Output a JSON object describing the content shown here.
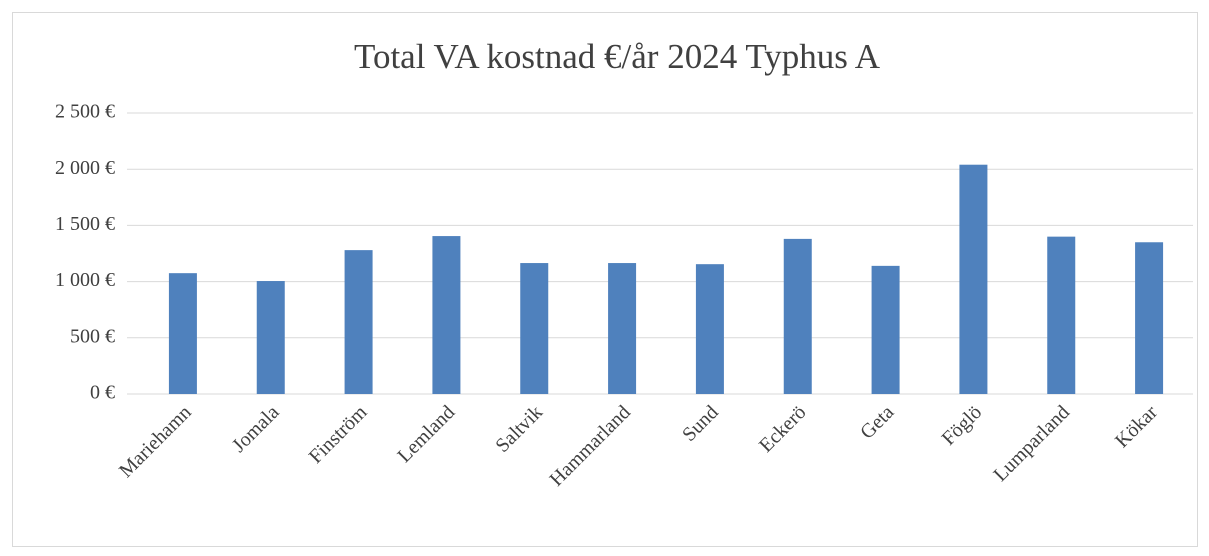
{
  "chart_data": {
    "type": "bar",
    "title": "Total VA kostnad €/år 2024 Typhus A",
    "categories": [
      "Mariehamn",
      "Jomala",
      "Finström",
      "Lemland",
      "Saltvik",
      "Hammarland",
      "Sund",
      "Eckerö",
      "Geta",
      "Föglö",
      "Lumparland",
      "Kökar"
    ],
    "values": [
      1075,
      1005,
      1280,
      1405,
      1165,
      1165,
      1155,
      1380,
      1140,
      2040,
      1400,
      1350
    ],
    "color": "#4f81bd",
    "ylim": [
      0,
      2500
    ],
    "yticks": [
      {
        "value": 0,
        "label": "0 €"
      },
      {
        "value": 500,
        "label": "500 €"
      },
      {
        "value": 1000,
        "label": "1 000 €"
      },
      {
        "value": 1500,
        "label": "1 500 €"
      },
      {
        "value": 2000,
        "label": "2 000 €"
      },
      {
        "value": 2500,
        "label": "2 500 €"
      }
    ],
    "grid": true
  }
}
